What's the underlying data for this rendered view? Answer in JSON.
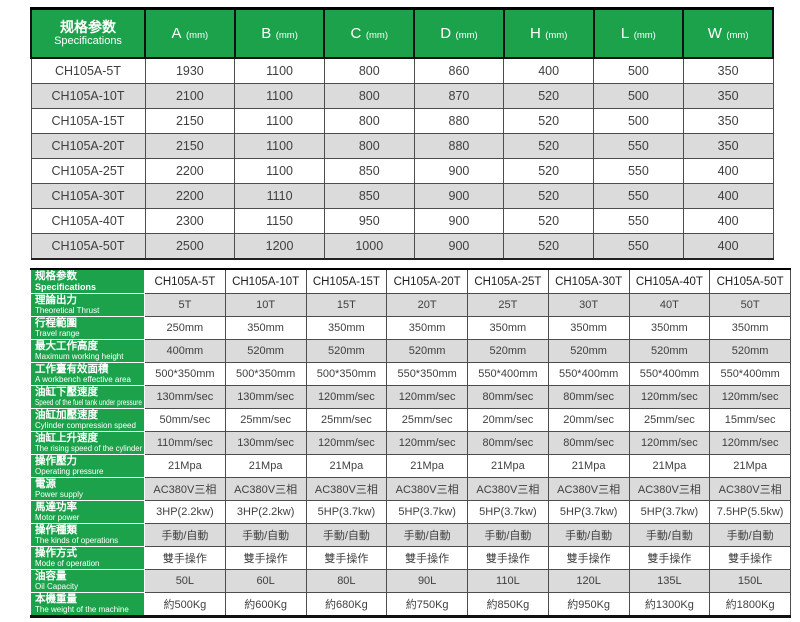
{
  "colors": {
    "green": "#1da24c",
    "stripe": "#dbdbdb",
    "border": "#4d4d4d"
  },
  "top_table": {
    "header": {
      "title_zh": "规格参数",
      "title_en": "Specifications",
      "columns": [
        {
          "letter": "A",
          "unit": "(mm)"
        },
        {
          "letter": "B",
          "unit": "(mm)"
        },
        {
          "letter": "C",
          "unit": "(mm)"
        },
        {
          "letter": "D",
          "unit": "(mm)"
        },
        {
          "letter": "H",
          "unit": "(mm)"
        },
        {
          "letter": "L",
          "unit": "(mm)"
        },
        {
          "letter": "W",
          "unit": "(mm)"
        }
      ]
    },
    "rows": [
      {
        "model": "CH105A-5T",
        "values": [
          "1930",
          "1100",
          "800",
          "860",
          "400",
          "500",
          "350"
        ]
      },
      {
        "model": "CH105A-10T",
        "values": [
          "2100",
          "1100",
          "800",
          "870",
          "520",
          "500",
          "350"
        ]
      },
      {
        "model": "CH105A-15T",
        "values": [
          "2150",
          "1100",
          "800",
          "880",
          "520",
          "500",
          "350"
        ]
      },
      {
        "model": "CH105A-20T",
        "values": [
          "2150",
          "1100",
          "800",
          "880",
          "520",
          "550",
          "350"
        ]
      },
      {
        "model": "CH105A-25T",
        "values": [
          "2200",
          "1100",
          "850",
          "900",
          "520",
          "550",
          "400"
        ]
      },
      {
        "model": "CH105A-30T",
        "values": [
          "2200",
          "1110",
          "850",
          "900",
          "520",
          "550",
          "400"
        ]
      },
      {
        "model": "CH105A-40T",
        "values": [
          "2300",
          "1150",
          "950",
          "900",
          "520",
          "550",
          "400"
        ]
      },
      {
        "model": "CH105A-50T",
        "values": [
          "2500",
          "1200",
          "1000",
          "900",
          "520",
          "550",
          "400"
        ]
      }
    ]
  },
  "bottom_table": {
    "header": {
      "title_zh": "规格参数",
      "title_en": "Specifications",
      "models": [
        "CH105A-5T",
        "CH105A-10T",
        "CH105A-15T",
        "CH105A-20T",
        "CH105A-25T",
        "CH105A-30T",
        "CH105A-40T",
        "CH105A-50T"
      ]
    },
    "rows": [
      {
        "label_zh": "理論出力",
        "label_en": "Theoretical Thrust",
        "values": [
          "5T",
          "10T",
          "15T",
          "20T",
          "25T",
          "30T",
          "40T",
          "50T"
        ]
      },
      {
        "label_zh": "行程範圍",
        "label_en": "Travel range",
        "values": [
          "250mm",
          "350mm",
          "350mm",
          "350mm",
          "350mm",
          "350mm",
          "350mm",
          "350mm"
        ]
      },
      {
        "label_zh": "最大工作高度",
        "label_en": "Maximum working height",
        "values": [
          "400mm",
          "520mm",
          "520mm",
          "520mm",
          "520mm",
          "520mm",
          "520mm",
          "520mm"
        ]
      },
      {
        "label_zh": "工作臺有效面積",
        "label_en": "A workbench effective area",
        "values": [
          "500*350mm",
          "500*350mm",
          "500*350mm",
          "550*350mm",
          "550*400mm",
          "550*400mm",
          "550*400mm",
          "550*400mm"
        ]
      },
      {
        "label_zh": "油缸下壓速度",
        "label_en": "Speed of the fuel tank under pressure",
        "values": [
          "130mm/sec",
          "130mm/sec",
          "120mm/sec",
          "120mm/sec",
          "80mm/sec",
          "80mm/sec",
          "120mm/sec",
          "120mm/sec"
        ]
      },
      {
        "label_zh": "油缸加壓速度",
        "label_en": "Cylinder compression speed",
        "values": [
          "50mm/sec",
          "25mm/sec",
          "25mm/sec",
          "25mm/sec",
          "20mm/sec",
          "20mm/sec",
          "25mm/sec",
          "15mm/sec"
        ]
      },
      {
        "label_zh": "油缸上升速度",
        "label_en": "The rising speed of the cylinder",
        "values": [
          "110mm/sec",
          "130mm/sec",
          "120mm/sec",
          "120mm/sec",
          "80mm/sec",
          "80mm/sec",
          "120mm/sec",
          "120mm/sec"
        ]
      },
      {
        "label_zh": "操作壓力",
        "label_en": "Operating pressure",
        "values": [
          "21Mpa",
          "21Mpa",
          "21Mpa",
          "21Mpa",
          "21Mpa",
          "21Mpa",
          "21Mpa",
          "21Mpa"
        ]
      },
      {
        "label_zh": "電源",
        "label_en": "Power supply",
        "values": [
          "AC380V三相",
          "AC380V三相",
          "AC380V三相",
          "AC380V三相",
          "AC380V三相",
          "AC380V三相",
          "AC380V三相",
          "AC380V三相"
        ]
      },
      {
        "label_zh": "馬達功率",
        "label_en": "Motor power",
        "values": [
          "3HP(2.2kw)",
          "3HP(2.2kw)",
          "5HP(3.7kw)",
          "5HP(3.7kw)",
          "5HP(3.7kw)",
          "5HP(3.7kw)",
          "5HP(3.7kw)",
          "7.5HP(5.5kw)"
        ]
      },
      {
        "label_zh": "操作種類",
        "label_en": "The kinds of operations",
        "values": [
          "手動/自動",
          "手動/自動",
          "手動/自動",
          "手動/自動",
          "手動/自動",
          "手動/自動",
          "手動/自動",
          "手動/自動"
        ]
      },
      {
        "label_zh": "操作方式",
        "label_en": "Mode of operation",
        "values": [
          "雙手操作",
          "雙手操作",
          "雙手操作",
          "雙手操作",
          "雙手操作",
          "雙手操作",
          "雙手操作",
          "雙手操作"
        ]
      },
      {
        "label_zh": "油容量",
        "label_en": "Oil Capacity",
        "values": [
          "50L",
          "60L",
          "80L",
          "90L",
          "110L",
          "120L",
          "135L",
          "150L"
        ]
      },
      {
        "label_zh": "本機重量",
        "label_en": "The weight of the machine",
        "values": [
          "約500Kg",
          "約600Kg",
          "約680Kg",
          "約750Kg",
          "約850Kg",
          "約950Kg",
          "約1300Kg",
          "約1800Kg"
        ]
      }
    ]
  }
}
